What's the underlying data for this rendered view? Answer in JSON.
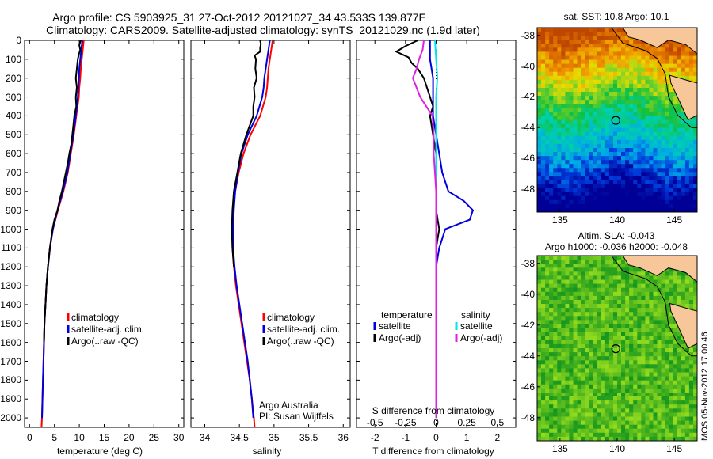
{
  "header": {
    "line1": "Argo profile: CS 5903925_31 27-Oct-2012 20121027_34 43.533S 139.877E",
    "line2": "Climatology: CARS2009. Satellite-adjusted climatology: synTS_20121029.nc (1.9d later)"
  },
  "colors": {
    "climatology": "#ff0000",
    "satellite": "#0000dd",
    "argo": "#000000",
    "cyan": "#00e5ee",
    "magenta": "#e020e0"
  },
  "chart_data": [
    {
      "type": "line",
      "xlabel": "temperature (deg C)",
      "xlim": [
        -1,
        31
      ],
      "ylim": [
        2050,
        0
      ],
      "xticks": [
        "0",
        "5",
        "10",
        "15",
        "20",
        "25",
        "30"
      ],
      "yticks": [
        "0",
        "100",
        "200",
        "300",
        "400",
        "500",
        "600",
        "700",
        "800",
        "900",
        "1000",
        "1100",
        "1200",
        "1300",
        "1400",
        "1500",
        "1600",
        "1700",
        "1800",
        "1900",
        "2000"
      ],
      "legend": [
        "climatology",
        "satellite-adj. clim.",
        "Argo(..raw -QC)"
      ],
      "series": [
        {
          "name": "climatology",
          "depth": [
            0,
            50,
            100,
            150,
            200,
            250,
            300,
            400,
            500,
            600,
            700,
            800,
            900,
            1000,
            1100,
            1200,
            1300,
            1400,
            1500,
            1600,
            1700,
            1800,
            1900,
            2000,
            2050
          ],
          "values": [
            10.9,
            10.7,
            10.5,
            10.3,
            10.2,
            10.0,
            9.9,
            9.4,
            8.9,
            8.3,
            7.7,
            6.8,
            5.7,
            4.7,
            4.1,
            3.7,
            3.4,
            3.2,
            3.0,
            2.9,
            2.8,
            2.7,
            2.6,
            2.5,
            2.4
          ]
        },
        {
          "name": "satellite-adj. clim.",
          "depth": [
            0,
            50,
            100,
            150,
            200,
            250,
            300,
            400,
            500,
            600,
            700,
            800,
            900,
            1000,
            1100,
            1200,
            1300,
            1400,
            1500,
            1600,
            1700,
            1800,
            1900,
            2000
          ],
          "values": [
            10.6,
            10.4,
            10.2,
            10.0,
            9.9,
            9.8,
            9.7,
            9.3,
            8.8,
            8.2,
            7.6,
            6.7,
            5.6,
            4.7,
            4.1,
            3.7,
            3.4,
            3.2,
            3.0,
            2.9,
            2.8,
            2.7,
            2.6,
            2.5
          ]
        },
        {
          "name": "Argo(..raw -QC)",
          "depth": [
            0,
            25,
            50,
            75,
            100,
            150,
            200,
            250,
            300,
            350,
            400,
            450,
            500,
            550,
            600,
            650,
            700,
            750,
            800,
            850,
            900,
            950,
            1000,
            1100,
            1200,
            1300,
            1400,
            1500,
            1600
          ],
          "values": [
            10.3,
            10.0,
            10.2,
            9.9,
            9.7,
            9.5,
            9.3,
            9.5,
            9.3,
            9.4,
            9.0,
            8.8,
            8.6,
            8.4,
            8.0,
            7.7,
            7.3,
            6.9,
            6.5,
            6.0,
            5.6,
            5.0,
            4.6,
            4.1,
            3.7,
            3.4,
            3.2,
            3.0,
            2.9
          ]
        }
      ]
    },
    {
      "type": "line",
      "xlabel": "salinity",
      "xlim": [
        33.8,
        36.1
      ],
      "ylim": [
        2050,
        0
      ],
      "xticks": [
        "34",
        "34.5",
        "35",
        "35.5",
        "36"
      ],
      "legend": [
        "climatology",
        "satellite-adj. clim.",
        "Argo(..raw -QC)"
      ],
      "annotation": [
        "Argo Australia",
        "PI: Susan Wijffels"
      ],
      "series": [
        {
          "name": "climatology",
          "depth": [
            0,
            50,
            100,
            150,
            200,
            250,
            300,
            400,
            500,
            600,
            700,
            800,
            900,
            1000,
            1100,
            1200,
            1300,
            1400,
            1500,
            1600,
            1700,
            1800,
            1900,
            2000,
            2050
          ],
          "values": [
            34.98,
            34.96,
            34.94,
            34.92,
            34.91,
            34.9,
            34.88,
            34.8,
            34.66,
            34.56,
            34.49,
            34.44,
            34.41,
            34.4,
            34.4,
            34.42,
            34.45,
            34.49,
            34.53,
            34.57,
            34.61,
            34.65,
            34.68,
            34.71,
            34.72
          ]
        },
        {
          "name": "satellite-adj. clim.",
          "depth": [
            0,
            50,
            100,
            150,
            200,
            250,
            300,
            400,
            500,
            600,
            700,
            800,
            900,
            1000,
            1100,
            1200,
            1300,
            1400,
            1500,
            1600,
            1700,
            1800,
            1900,
            2000
          ],
          "values": [
            34.94,
            34.92,
            34.9,
            34.88,
            34.86,
            34.85,
            34.83,
            34.75,
            34.62,
            34.53,
            34.48,
            34.44,
            34.42,
            34.41,
            34.41,
            34.43,
            34.46,
            34.5,
            34.54,
            34.58,
            34.62,
            34.65,
            34.68,
            34.7
          ]
        },
        {
          "name": "Argo(..raw -QC)",
          "depth": [
            0,
            20,
            40,
            60,
            80,
            100,
            150,
            200,
            250,
            300,
            350,
            400,
            500,
            600,
            700,
            800,
            900,
            1000,
            1100,
            1200
          ],
          "values": [
            34.8,
            34.81,
            34.8,
            34.8,
            34.72,
            34.74,
            34.73,
            34.75,
            34.71,
            34.72,
            34.7,
            34.7,
            34.6,
            34.52,
            34.47,
            34.42,
            34.4,
            34.39,
            34.4,
            34.42
          ]
        }
      ]
    },
    {
      "type": "line",
      "xlabel": "T difference from climatology",
      "x2label": "S difference from climatology",
      "xlim": [
        -2.6,
        2.6
      ],
      "x2lim": [
        -0.65,
        0.65
      ],
      "ylim": [
        2050,
        0
      ],
      "xticks": [
        "-2",
        "-1",
        "0",
        "1",
        "2"
      ],
      "x2ticks": [
        "-0.5",
        "-0.25",
        "0",
        "0.25",
        "0.5"
      ],
      "legend_left_title": "temperature",
      "legend_left": [
        "satellite",
        "Argo(-adj)"
      ],
      "legend_right_title": "salinity",
      "legend_right": [
        "satellite",
        "Argo(-adj)"
      ],
      "series": [
        {
          "name": "temperature satellite",
          "depth": [
            0,
            100,
            200,
            300,
            400,
            500,
            600,
            700,
            800,
            850,
            900,
            950,
            1000,
            1100,
            1200,
            1400,
            1600,
            1800,
            2000
          ],
          "values": [
            -0.2,
            -0.2,
            -0.1,
            -0.1,
            -0.1,
            0.0,
            0.1,
            0.2,
            0.4,
            0.9,
            1.2,
            1.1,
            0.3,
            0.1,
            0.0,
            0.0,
            0.0,
            0.0,
            0.0
          ]
        },
        {
          "name": "temperature Argo(-adj)",
          "depth": [
            0,
            30,
            60,
            90,
            120,
            150,
            200,
            250,
            300,
            350,
            400,
            500,
            600,
            700,
            800,
            900,
            1000,
            1100,
            1200,
            1300,
            1400,
            1500,
            1600
          ],
          "values": [
            -0.6,
            -1.0,
            -1.3,
            -0.9,
            -0.8,
            -0.6,
            -0.4,
            -0.3,
            -0.2,
            -0.1,
            -0.2,
            -0.1,
            0.0,
            0.0,
            0.0,
            0.0,
            0.1,
            0.0,
            0.0,
            0.0,
            0.0,
            0.0,
            0.0
          ]
        },
        {
          "name": "salinity satellite",
          "depth": [
            0,
            100,
            200,
            300,
            400,
            500,
            600,
            700,
            800,
            900,
            1000,
            1100,
            1200,
            1400,
            1600,
            1800,
            2000
          ],
          "values": [
            -0.01,
            0.0,
            0.01,
            0.0,
            0.0,
            0.0,
            0.0,
            0.0,
            0.0,
            0.0,
            0.0,
            0.0,
            0.0,
            0.0,
            0.0,
            0.0,
            0.0
          ]
        },
        {
          "name": "salinity Argo(-adj)",
          "depth": [
            0,
            50,
            100,
            150,
            200,
            300,
            400,
            500,
            600,
            700,
            800,
            900,
            1000,
            1100,
            1200,
            1300,
            1400,
            1500,
            1600,
            1800,
            2000
          ],
          "values": [
            -0.1,
            -0.11,
            -0.14,
            -0.16,
            -0.19,
            -0.13,
            -0.03,
            -0.02,
            -0.02,
            -0.01,
            0.0,
            0.0,
            0.0,
            0.0,
            0.0,
            0.0,
            0.0,
            0.0,
            0.0,
            0.0,
            0.0
          ]
        }
      ]
    },
    {
      "type": "heatmap",
      "title": "sat. SST: 10.8 Argo: 10.1",
      "xticks": [
        "135",
        "140",
        "145"
      ],
      "yticks": [
        "-38",
        "-40",
        "-42",
        "-44",
        "-46",
        "-48"
      ],
      "marker": {
        "lon": 139.877,
        "lat": -43.533
      }
    },
    {
      "type": "heatmap",
      "title": "Altim. SLA: -0.043",
      "subtitle": "Argo h1000: -0.036 h2000: -0.048",
      "xticks": [
        "135",
        "140",
        "145"
      ],
      "yticks": [
        "-38",
        "-40",
        "-42",
        "-44",
        "-46",
        "-48"
      ],
      "marker": {
        "lon": 139.877,
        "lat": -43.533
      }
    }
  ],
  "stamp": "IMOS 05-Nov-2012 17:00:46"
}
